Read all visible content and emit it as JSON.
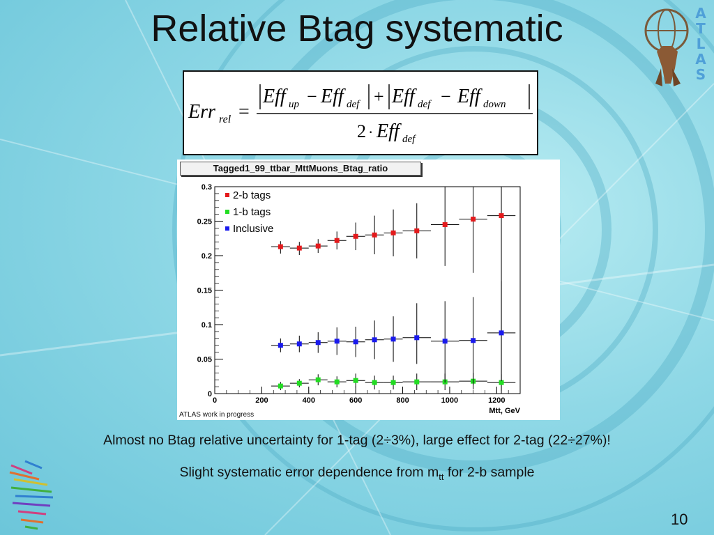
{
  "slide": {
    "title": "Relative Btag systematic",
    "note1": "Almost no Btag relative uncertainty for 1-tag (2÷3%), large effect for 2-tag (22÷27%)!",
    "note2_prefix": "Slight systematic error dependence from m",
    "note2_sub": "tt",
    "note2_suffix": " for 2-b sample",
    "page_number": "10"
  },
  "logo": {
    "letters": [
      "A",
      "T",
      "L",
      "A",
      "S"
    ]
  },
  "formula": {
    "lhs": "Err",
    "lhs_sub": "rel",
    "eq": "=",
    "eff": "Eff",
    "sub_up": "up",
    "sub_def": "def",
    "sub_down": "down",
    "minus": "−",
    "plus": "+",
    "den_two": "2",
    "dot": "·"
  },
  "chart_data": {
    "type": "scatter",
    "name": "Tagged1_99_ttbar_MttMuons_Btag_ratio",
    "xlabel": "Mtt, GeV",
    "ylabel": "",
    "xlim": [
      0,
      1300
    ],
    "ylim": [
      0,
      0.3
    ],
    "x_ticks": [
      "0",
      "200",
      "400",
      "600",
      "800",
      "1000",
      "1200"
    ],
    "x_tick_values": [
      0,
      200,
      400,
      600,
      800,
      1000,
      1200
    ],
    "y_ticks": [
      "0",
      "0.05",
      "0.1",
      "0.15",
      "0.2",
      "0.25",
      "0.3"
    ],
    "y_tick_values": [
      0,
      0.05,
      0.1,
      0.15,
      0.2,
      0.25,
      0.3
    ],
    "legend_position": "top-left",
    "annotation": "ATLAS work in progress",
    "x": [
      280,
      360,
      440,
      520,
      600,
      680,
      760,
      860,
      980,
      1100,
      1220
    ],
    "x_halfwidth": [
      40,
      40,
      40,
      40,
      40,
      40,
      40,
      60,
      60,
      60,
      60
    ],
    "series": [
      {
        "name": "2-b tags",
        "color": "#e41a1c",
        "values": [
          0.213,
          0.211,
          0.214,
          0.222,
          0.228,
          0.23,
          0.233,
          0.236,
          0.245,
          0.253,
          0.258
        ],
        "err_low": [
          0.01,
          0.01,
          0.01,
          0.013,
          0.02,
          0.028,
          0.034,
          0.04,
          0.06,
          0.078,
          0.258
        ],
        "err_high": [
          0.008,
          0.009,
          0.01,
          0.013,
          0.02,
          0.028,
          0.034,
          0.04,
          0.055,
          0.047,
          0.042
        ]
      },
      {
        "name": "1-b tags",
        "color": "#22dd22",
        "values": [
          0.011,
          0.015,
          0.02,
          0.017,
          0.019,
          0.016,
          0.016,
          0.017,
          0.017,
          0.018,
          0.016
        ],
        "err_low": [
          0.006,
          0.006,
          0.008,
          0.008,
          0.01,
          0.01,
          0.01,
          0.012,
          0.012,
          0.012,
          0.012
        ],
        "err_high": [
          0.006,
          0.006,
          0.008,
          0.008,
          0.01,
          0.01,
          0.01,
          0.012,
          0.012,
          0.012,
          0.012
        ]
      },
      {
        "name": "Inclusive",
        "color": "#1a1aee",
        "values": [
          0.07,
          0.072,
          0.074,
          0.076,
          0.075,
          0.078,
          0.079,
          0.081,
          0.076,
          0.077,
          0.088
        ],
        "err_low": [
          0.01,
          0.012,
          0.015,
          0.02,
          0.022,
          0.028,
          0.033,
          0.038,
          0.06,
          0.065,
          0.07
        ],
        "err_high": [
          0.01,
          0.012,
          0.015,
          0.02,
          0.022,
          0.028,
          0.033,
          0.05,
          0.058,
          0.063,
          0.075
        ]
      }
    ]
  }
}
